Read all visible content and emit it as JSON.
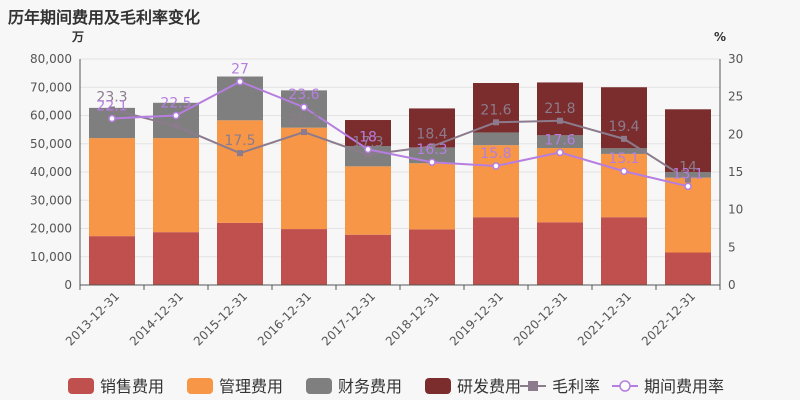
{
  "chart_data": {
    "type": "bar",
    "title": "历年期间费用及毛利率变化",
    "left_unit": "万",
    "right_unit": "%",
    "categories": [
      "2013-12-31",
      "2014-12-31",
      "2015-12-31",
      "2016-12-31",
      "2017-12-31",
      "2018-12-31",
      "2019-12-31",
      "2020-12-31",
      "2021-12-31",
      "2022-12-31"
    ],
    "ylim_left": [
      0,
      80000
    ],
    "yticks_left": [
      0,
      10000,
      20000,
      30000,
      40000,
      50000,
      60000,
      70000,
      80000
    ],
    "ytick_labels_left": [
      "0",
      "10,000",
      "20,000",
      "30,000",
      "40,000",
      "50,000",
      "60,000",
      "70,000",
      "80,000"
    ],
    "ylim_right": [
      0,
      30
    ],
    "yticks_right": [
      0,
      5,
      10,
      15,
      20,
      25,
      30
    ],
    "ytick_labels_right": [
      "0",
      "5",
      "10",
      "15",
      "20",
      "25",
      "30"
    ],
    "stacked_series": [
      {
        "name": "销售费用",
        "color": "#c0504d",
        "values": [
          17300,
          18700,
          22000,
          19800,
          17800,
          19700,
          24000,
          22200,
          24000,
          11500
        ]
      },
      {
        "name": "管理费用",
        "color": "#f79646",
        "values": [
          34700,
          33300,
          36300,
          35900,
          24200,
          23400,
          25500,
          26300,
          22400,
          26500
        ]
      },
      {
        "name": "财务费用",
        "color": "#7f7f7f",
        "values": [
          10700,
          12500,
          15500,
          13200,
          7200,
          5600,
          4500,
          4500,
          2000,
          2000
        ]
      },
      {
        "name": "研发费用",
        "color": "#7b2c2c",
        "values": [
          0,
          0,
          0,
          0,
          9200,
          13800,
          17500,
          18700,
          21600,
          22200
        ]
      }
    ],
    "line_series": [
      {
        "name": "毛利率",
        "color": "#8c7b8c",
        "marker": "square",
        "values": [
          23.3,
          21.1,
          17.5,
          20.3,
          17.3,
          18.4,
          21.6,
          21.8,
          19.4,
          14.0
        ],
        "labels": [
          "23.3",
          "",
          "17.5",
          "20.3",
          "17.3",
          "18.4",
          "21.6",
          "21.8",
          "19.4",
          "14"
        ]
      },
      {
        "name": "期间费用率",
        "color": "#b57ee0",
        "marker": "circle",
        "values": [
          22.1,
          22.5,
          27.0,
          23.6,
          18.0,
          16.3,
          15.8,
          17.6,
          15.1,
          13.1
        ],
        "labels": [
          "22.1",
          "22.5",
          "27",
          "23.6",
          "18",
          "16.3",
          "15.8",
          "17.6",
          "15.1",
          "13.1"
        ]
      }
    ]
  }
}
